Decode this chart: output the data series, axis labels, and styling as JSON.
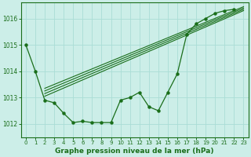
{
  "hours": [
    0,
    1,
    2,
    3,
    4,
    5,
    6,
    7,
    8,
    9,
    10,
    11,
    12,
    13,
    14,
    15,
    16,
    17,
    18,
    19,
    20,
    21,
    22,
    23
  ],
  "jagged": [
    1015.0,
    1014.0,
    1012.9,
    1012.8,
    1012.4,
    1012.05,
    1012.1,
    1012.05,
    1012.05,
    1012.05,
    1012.9,
    1013.0,
    1013.2,
    1012.65,
    1012.5,
    1013.2,
    1013.9,
    1015.4,
    1015.8,
    1016.0,
    1016.2,
    1016.3,
    1016.35,
    null
  ],
  "trend1_x": [
    2,
    23
  ],
  "trend1_y": [
    1013.05,
    1016.3
  ],
  "trend2_x": [
    2,
    23
  ],
  "trend2_y": [
    1013.15,
    1016.35
  ],
  "trend3_x": [
    2,
    23
  ],
  "trend3_y": [
    1013.25,
    1016.4
  ],
  "trend4_x": [
    2,
    23
  ],
  "trend4_y": [
    1013.35,
    1016.45
  ],
  "line_color": "#1a6e1a",
  "bg_color": "#cceee8",
  "grid_color": "#aaddd6",
  "xlabel": "Graphe pression niveau de la mer (hPa)",
  "ylim": [
    1011.5,
    1016.6
  ],
  "xlim": [
    -0.5,
    23.5
  ],
  "yticks": [
    1012,
    1013,
    1014,
    1015,
    1016
  ],
  "xticks": [
    0,
    1,
    2,
    3,
    4,
    5,
    6,
    7,
    8,
    9,
    10,
    11,
    12,
    13,
    14,
    15,
    16,
    17,
    18,
    19,
    20,
    21,
    22,
    23
  ]
}
